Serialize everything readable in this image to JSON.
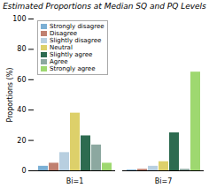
{
  "chart_data": {
    "type": "bar",
    "title": "Estimated Proportions at Median SQ and PQ Levels",
    "ylabel": "Proportions (%)",
    "categories": [
      "Bi=1",
      "Bi=7"
    ],
    "series": [
      {
        "name": "Strongly disagree",
        "color": "#7bafd4",
        "values": [
          3,
          0.5
        ]
      },
      {
        "name": "Disagree",
        "color": "#c08070",
        "values": [
          5,
          1
        ]
      },
      {
        "name": "Slightly disagree",
        "color": "#b8cfe0",
        "values": [
          12,
          3
        ]
      },
      {
        "name": "Neutral",
        "color": "#ddd06a",
        "values": [
          38,
          6
        ]
      },
      {
        "name": "Slightly agree",
        "color": "#2d6b50",
        "values": [
          23,
          25
        ]
      },
      {
        "name": "Agree",
        "color": "#8ca8a0",
        "values": [
          17,
          1
        ]
      },
      {
        "name": "Strongly agree",
        "color": "#9ed870",
        "values": [
          5,
          65
        ]
      }
    ],
    "ylim": [
      0,
      100
    ],
    "yticks": [
      0,
      20,
      40,
      60,
      80,
      100
    ],
    "legend": "upper left"
  }
}
